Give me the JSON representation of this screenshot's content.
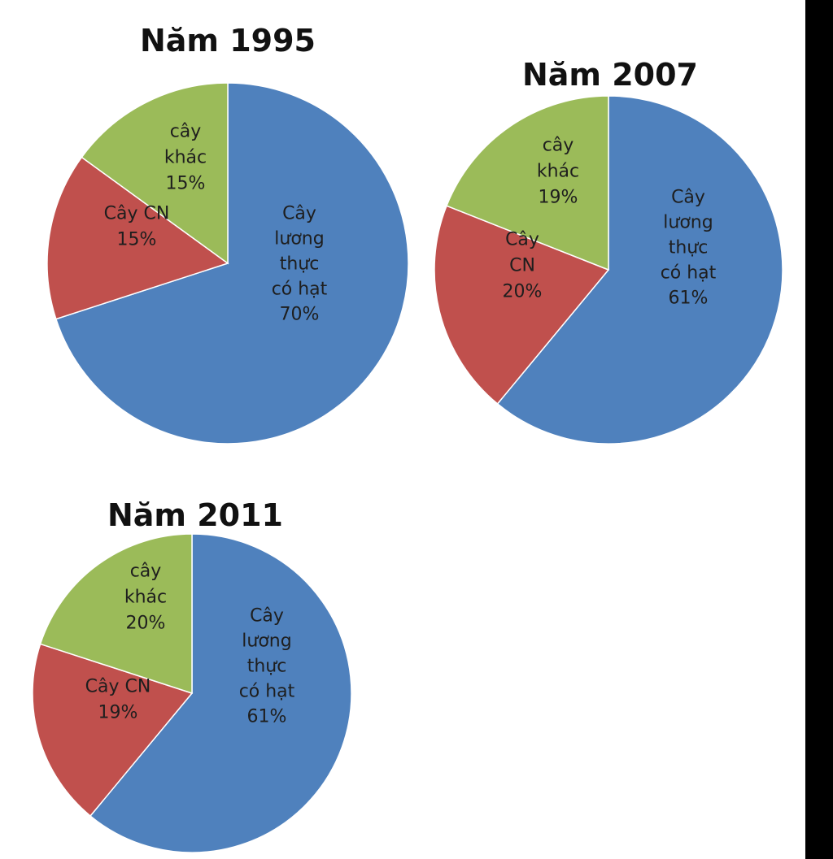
{
  "colors": {
    "cay_luong_thuc": "#4f81bd",
    "cay_cn": "#c0504d",
    "cay_khac": "#9bbb59"
  },
  "chart_data": [
    {
      "type": "pie",
      "title": "Năm 1995",
      "slices": [
        {
          "label": "Cây lương thực có hạt",
          "value": 70,
          "value_label": "70%",
          "color": "#4f81bd"
        },
        {
          "label": "Cây CN",
          "value": 15,
          "value_label": "15%",
          "color": "#c0504d"
        },
        {
          "label": "cây khác",
          "value": 15,
          "value_label": "15%",
          "color": "#9bbb59"
        }
      ]
    },
    {
      "type": "pie",
      "title": "Năm 2007",
      "slices": [
        {
          "label": "Cây lương thực có hạt",
          "value": 61,
          "value_label": "61%",
          "color": "#4f81bd"
        },
        {
          "label": "Cây CN",
          "value": 20,
          "value_label": "20%",
          "color": "#c0504d"
        },
        {
          "label": "cây khác",
          "value": 19,
          "value_label": "19%",
          "color": "#9bbb59"
        }
      ]
    },
    {
      "type": "pie",
      "title": "Năm 2011",
      "slices": [
        {
          "label": "Cây lương thực có hạt",
          "value": 61,
          "value_label": "61%",
          "color": "#4f81bd"
        },
        {
          "label": "Cây CN",
          "value": 19,
          "value_label": "19%",
          "color": "#c0504d"
        },
        {
          "label": "cây khác",
          "value": 20,
          "value_label": "20%",
          "color": "#9bbb59"
        }
      ]
    }
  ]
}
